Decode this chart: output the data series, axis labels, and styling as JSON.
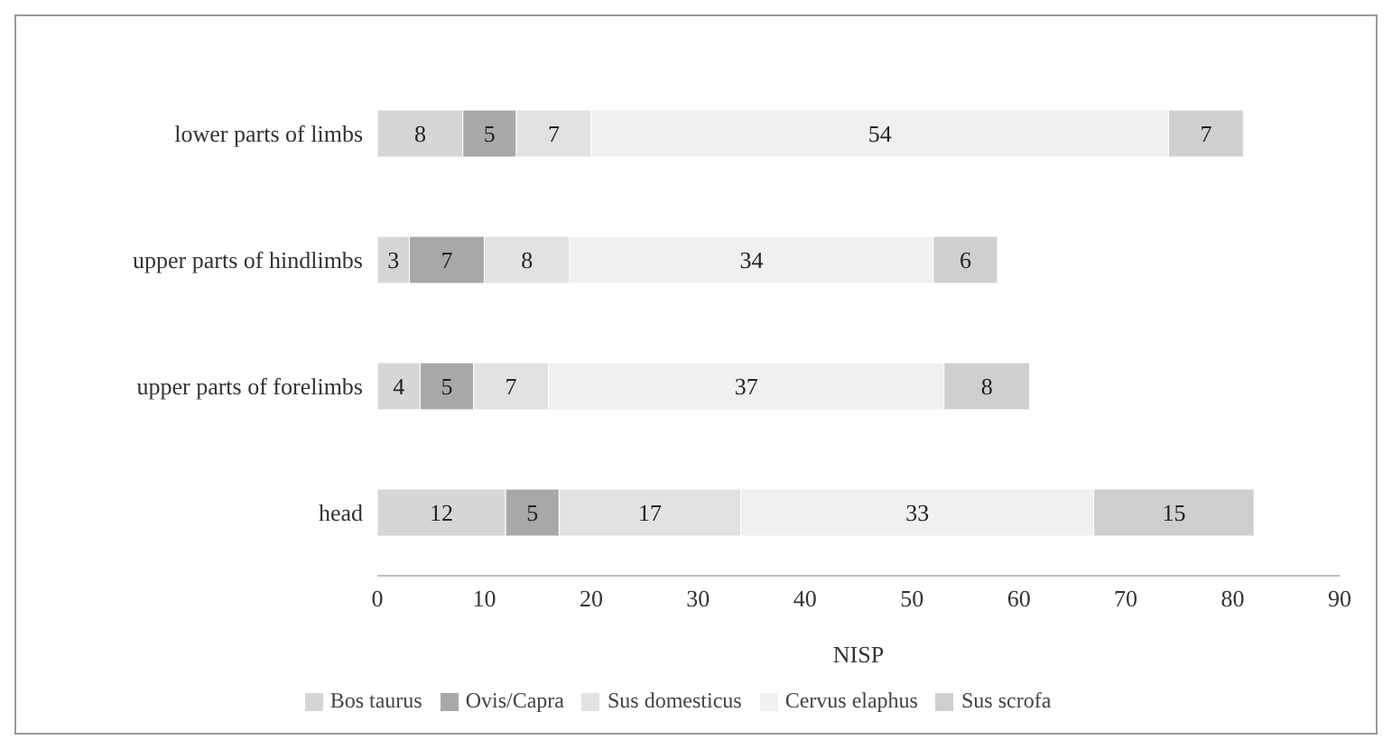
{
  "chart_data": {
    "type": "bar",
    "orientation": "horizontal",
    "stacked": true,
    "xlabel": "NISP",
    "categories": [
      "lower parts of limbs",
      "upper parts of hindlimbs",
      "upper parts of forelimbs",
      "head"
    ],
    "series": [
      {
        "name": "Bos taurus",
        "color": "#d6d6d6",
        "values": [
          8,
          3,
          4,
          12
        ]
      },
      {
        "name": "Ovis/Capra",
        "color": "#a8a8a8",
        "values": [
          5,
          7,
          5,
          5
        ]
      },
      {
        "name": "Sus domesticus",
        "color": "#e2e2e2",
        "values": [
          7,
          8,
          7,
          17
        ]
      },
      {
        "name": "Cervus elaphus",
        "color": "#f0f0f0",
        "values": [
          54,
          34,
          37,
          33
        ]
      },
      {
        "name": "Sus scrofa",
        "color": "#cfcfcf",
        "values": [
          7,
          6,
          8,
          15
        ]
      }
    ],
    "xlim": [
      0,
      90
    ],
    "xticks": [
      0,
      10,
      20,
      30,
      40,
      50,
      60,
      70,
      80,
      90
    ],
    "data_labels": true,
    "legend": "bottom",
    "grid": false
  }
}
